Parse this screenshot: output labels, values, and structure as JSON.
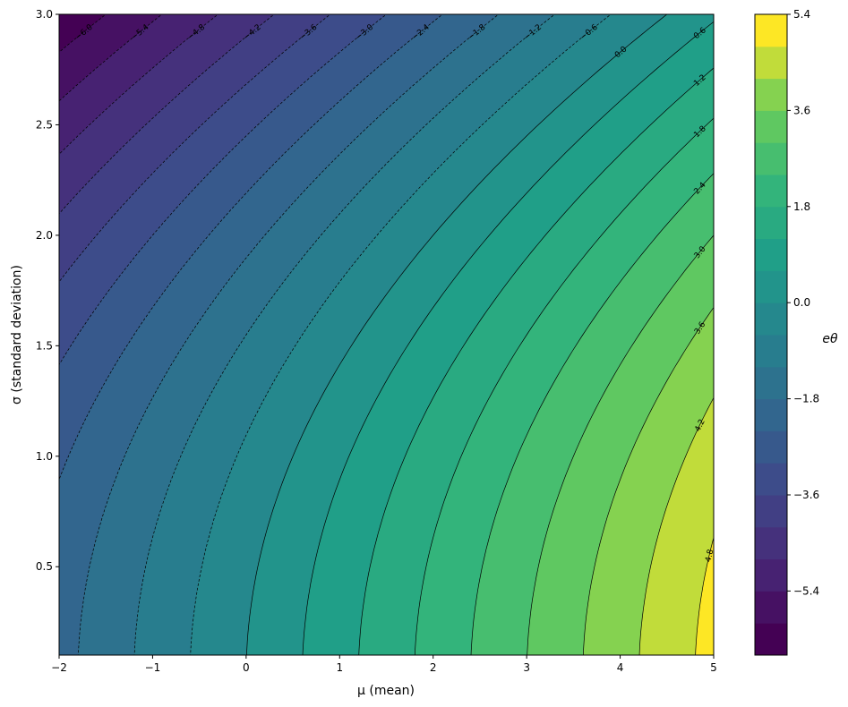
{
  "chart_data": {
    "type": "contour",
    "function": "e = mu - sigma^2 / 2",
    "xlabel": "μ (mean)",
    "ylabel": "σ (standard deviation)",
    "colorbar_label": "eθ",
    "xlim": [
      -2,
      5
    ],
    "ylim": [
      0.1,
      3.0
    ],
    "xticks": [
      -2,
      -1,
      0,
      1,
      2,
      3,
      4,
      5
    ],
    "yticks": [
      0.5,
      1.0,
      1.5,
      2.0,
      2.5,
      3.0
    ],
    "xtick_labels": [
      "−2",
      "−1",
      "0",
      "1",
      "2",
      "3",
      "4",
      "5"
    ],
    "ytick_labels": [
      "0.5",
      "1.0",
      "1.5",
      "2.0",
      "2.5",
      "3.0"
    ],
    "fill_levels": {
      "min": -6.6,
      "max": 5.4,
      "step": 0.6
    },
    "colorbar_ticks": [
      -5.4,
      -3.6,
      -1.8,
      0.0,
      1.8,
      3.6,
      5.4
    ],
    "colorbar_tick_labels": [
      "−5.4",
      "−3.6",
      "−1.8",
      "0.0",
      "1.8",
      "3.6",
      "5.4"
    ],
    "line_levels": [
      -6.0,
      -5.4,
      -4.8,
      -4.2,
      -3.6,
      -3.0,
      -2.4,
      -1.8,
      -1.2,
      -0.6,
      0.0,
      0.6,
      1.2,
      1.8,
      2.4,
      3.0,
      3.6,
      4.2,
      4.8
    ],
    "line_labels": [
      "−6.0",
      "−5.4",
      "−4.8",
      "−4.2",
      "−3.6",
      "−3.0",
      "−2.4",
      "−1.8",
      "−1.2",
      "−0.6",
      "0.0",
      "0.6",
      "1.2",
      "1.8",
      "2.4",
      "3.0",
      "3.6",
      "4.2",
      "4.8"
    ],
    "negative_lines": "dashed",
    "colormap": "viridis",
    "line_color": "#000000"
  }
}
